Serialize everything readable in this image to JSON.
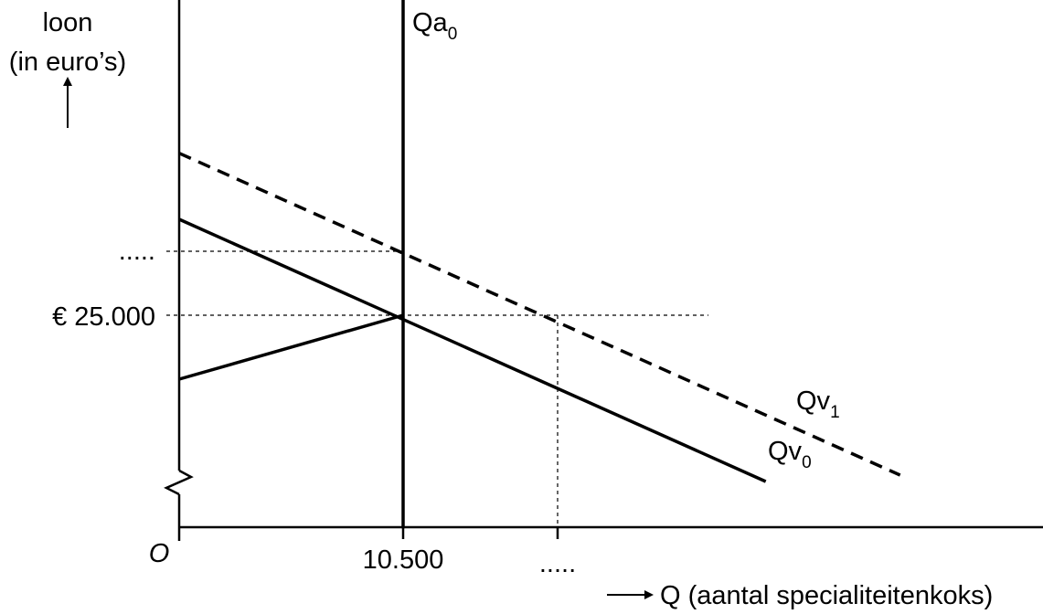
{
  "chart_data": {
    "type": "line",
    "y_axis_label": [
      "loon",
      "(in euro’s)"
    ],
    "x_axis_label": "Q (aantal specialiteitenkoks)",
    "origin_label": "O",
    "y_ticks": [
      {
        "label": "€ 25.000",
        "value": 25000
      },
      {
        "label": ".....",
        "value": 28000
      }
    ],
    "x_ticks": [
      {
        "label": "10.500",
        "value": 10500
      },
      {
        "label": ".....",
        "value": 17500
      }
    ],
    "axis_break": "y",
    "series": [
      {
        "key": "Qa0",
        "name": "Qa",
        "subscript": "0",
        "style": "solid",
        "points": [
          [
            10500,
            15000
          ],
          [
            10500,
            40000
          ]
        ]
      },
      {
        "key": "Qv0",
        "name": "Qv",
        "subscript": "0",
        "style": "solid",
        "points": [
          [
            0,
            29500
          ],
          [
            27500,
            17200
          ]
        ]
      },
      {
        "key": "Qv1",
        "name": "Qv",
        "subscript": "1",
        "style": "dashed",
        "points": [
          [
            0,
            32600
          ],
          [
            33800,
            17500
          ]
        ]
      },
      {
        "key": "supply",
        "name": "",
        "style": "solid",
        "points": [
          [
            0,
            22000
          ],
          [
            10500,
            25000
          ]
        ]
      }
    ]
  }
}
